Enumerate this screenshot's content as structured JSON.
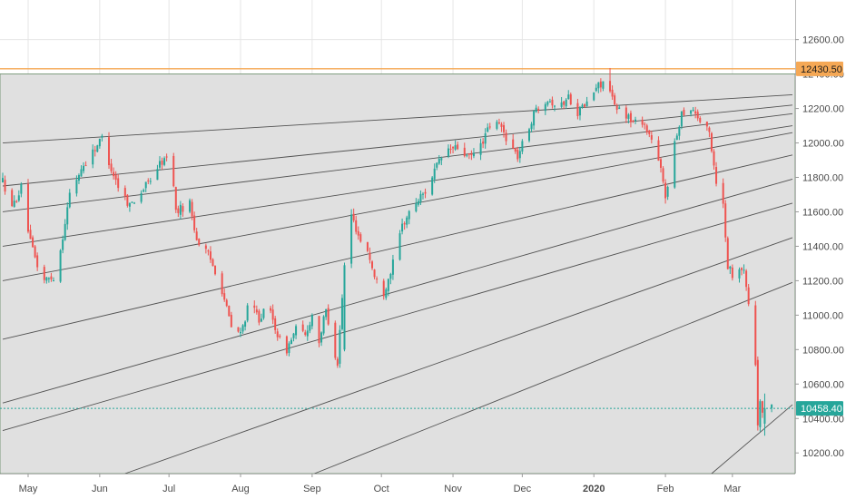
{
  "colors": {
    "up": "#26a69a",
    "down": "#ef5350",
    "channel_fill": "#e0e0e0",
    "fan_line": "#3a3a3a",
    "resistance": "#f5a855",
    "last_price": "#26a69a",
    "grid": "#e6e6e6",
    "axis_text": "#4a4a4a"
  },
  "chart_data": {
    "type": "candlestick",
    "y_axis": {
      "ticks": [
        10200,
        10400,
        10600,
        10800,
        11000,
        11200,
        11400,
        11600,
        11800,
        12000,
        12200,
        12400,
        12600
      ],
      "tick_labels": [
        "10200.00",
        "10400.00",
        "10600.00",
        "10800.00",
        "11000.00",
        "11200.00",
        "11400.00",
        "11600.00",
        "11800.00",
        "12000.00",
        "12200.00",
        "12400.00",
        "12600.00"
      ],
      "range": [
        10080,
        12830
      ]
    },
    "x_axis": {
      "labels": [
        {
          "text": "May",
          "day": 14,
          "bold": false
        },
        {
          "text": "Jun",
          "day": 45,
          "bold": false
        },
        {
          "text": "Jul",
          "day": 75,
          "bold": false
        },
        {
          "text": "Aug",
          "day": 106,
          "bold": false
        },
        {
          "text": "Sep",
          "day": 137,
          "bold": false
        },
        {
          "text": "Oct",
          "day": 167,
          "bold": false
        },
        {
          "text": "Nov",
          "day": 198,
          "bold": false
        },
        {
          "text": "Dec",
          "day": 228,
          "bold": false
        },
        {
          "text": "2020",
          "day": 259,
          "bold": true
        },
        {
          "text": "Feb",
          "day": 290,
          "bold": false
        },
        {
          "text": "Mar",
          "day": 319,
          "bold": false
        }
      ],
      "day_range": [
        3,
        345
      ]
    },
    "levels": [
      {
        "name": "resistance",
        "value": 12430.5,
        "label": "12430.50"
      },
      {
        "name": "last-price",
        "value": 10458.4,
        "label": "10458.40"
      }
    ],
    "channel": {
      "top_value": 12400
    },
    "fan_lines": [
      {
        "from": [
          3,
          12000
        ],
        "to": [
          345,
          12280
        ]
      },
      {
        "from": [
          3,
          11750
        ],
        "to": [
          345,
          12220
        ]
      },
      {
        "from": [
          3,
          11600
        ],
        "to": [
          345,
          12170
        ]
      },
      {
        "from": [
          3,
          11400
        ],
        "to": [
          345,
          12100
        ]
      },
      {
        "from": [
          3,
          11200
        ],
        "to": [
          345,
          12060
        ]
      },
      {
        "from": [
          3,
          10860
        ],
        "to": [
          345,
          11930
        ]
      },
      {
        "from": [
          3,
          10490
        ],
        "to": [
          345,
          11790
        ]
      },
      {
        "from": [
          3,
          10330
        ],
        "to": [
          345,
          11650
        ]
      },
      {
        "from": [
          56,
          10080
        ],
        "to": [
          345,
          11450
        ]
      },
      {
        "from": [
          138,
          10080
        ],
        "to": [
          345,
          11190
        ]
      },
      {
        "from": [
          310,
          10080
        ],
        "to": [
          345,
          10480
        ]
      }
    ],
    "anchors": [
      [
        3,
        11780
      ],
      [
        7,
        11620
      ],
      [
        11,
        11740
      ],
      [
        15,
        11420
      ],
      [
        20,
        11200
      ],
      [
        25,
        11220
      ],
      [
        28,
        11380
      ],
      [
        32,
        11700
      ],
      [
        37,
        11850
      ],
      [
        42,
        11950
      ],
      [
        46,
        12030
      ],
      [
        50,
        11850
      ],
      [
        54,
        11720
      ],
      [
        58,
        11640
      ],
      [
        62,
        11700
      ],
      [
        66,
        11770
      ],
      [
        71,
        11880
      ],
      [
        76,
        11930
      ],
      [
        78,
        11600
      ],
      [
        84,
        11650
      ],
      [
        87,
        11440
      ],
      [
        92,
        11350
      ],
      [
        97,
        11200
      ],
      [
        102,
        10930
      ],
      [
        106,
        10890
      ],
      [
        110,
        11080
      ],
      [
        114,
        10980
      ],
      [
        118,
        11050
      ],
      [
        122,
        10890
      ],
      [
        125,
        10770
      ],
      [
        130,
        10920
      ],
      [
        134,
        10880
      ],
      [
        137,
        11000
      ],
      [
        140,
        10850
      ],
      [
        143,
        11030
      ],
      [
        146,
        10830
      ],
      [
        148,
        10720
      ],
      [
        151,
        11290
      ],
      [
        154,
        11580
      ],
      [
        158,
        11430
      ],
      [
        161,
        11380
      ],
      [
        164,
        11220
      ],
      [
        168,
        11130
      ],
      [
        172,
        11300
      ],
      [
        176,
        11520
      ],
      [
        181,
        11640
      ],
      [
        186,
        11720
      ],
      [
        190,
        11840
      ],
      [
        195,
        11960
      ],
      [
        200,
        11970
      ],
      [
        205,
        11910
      ],
      [
        209,
        11960
      ],
      [
        214,
        12100
      ],
      [
        218,
        12110
      ],
      [
        222,
        12010
      ],
      [
        226,
        11920
      ],
      [
        230,
        12060
      ],
      [
        234,
        12200
      ],
      [
        239,
        12260
      ],
      [
        244,
        12200
      ],
      [
        248,
        12270
      ],
      [
        252,
        12180
      ],
      [
        256,
        12230
      ],
      [
        260,
        12320
      ],
      [
        264,
        12370
      ],
      [
        266,
        12320
      ],
      [
        268,
        12200
      ],
      [
        272,
        12180
      ],
      [
        276,
        12120
      ],
      [
        280,
        12130
      ],
      [
        284,
        12020
      ],
      [
        288,
        11840
      ],
      [
        290,
        11690
      ],
      [
        293,
        11920
      ],
      [
        297,
        12180
      ],
      [
        302,
        12200
      ],
      [
        306,
        12100
      ],
      [
        309,
        12060
      ],
      [
        312,
        11780
      ],
      [
        315,
        11640
      ],
      [
        317,
        11290
      ],
      [
        320,
        11210
      ],
      [
        322,
        11290
      ],
      [
        324,
        11250
      ],
      [
        327,
        10980
      ],
      [
        330,
        10570
      ],
      [
        333,
        10370
      ],
      [
        336,
        10458
      ]
    ],
    "special_bars": [
      {
        "day": 266,
        "open": 12360,
        "high": 12435,
        "low": 12290,
        "close": 12300
      },
      {
        "day": 151,
        "open": 10800,
        "high": 11305,
        "low": 10790,
        "close": 11290
      },
      {
        "day": 327,
        "open": 11010,
        "high": 11060,
        "low": 10820,
        "close": 10960
      },
      {
        "day": 330,
        "open": 10740,
        "high": 10760,
        "low": 10330,
        "close": 10360
      },
      {
        "day": 333,
        "open": 10370,
        "high": 10545,
        "low": 10300,
        "close": 10458
      }
    ]
  }
}
